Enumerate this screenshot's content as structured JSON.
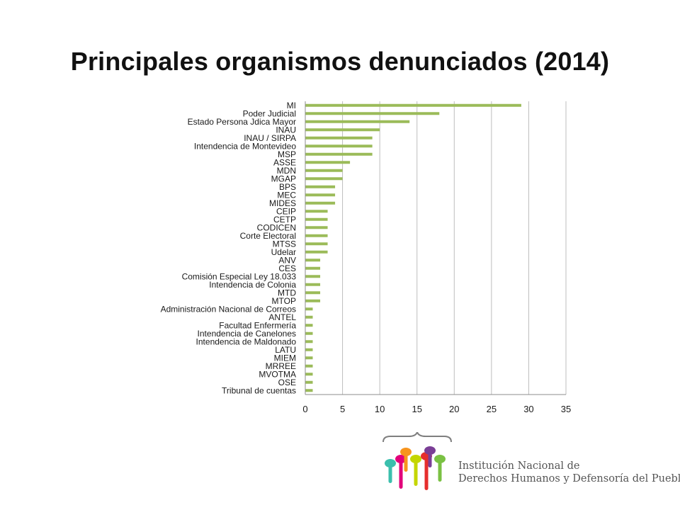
{
  "title": "Principales organismos denunciados (2014)",
  "colors": {
    "bar": "#9bbb59",
    "grid": "#bdbdbd",
    "axis": "#8c8c8c",
    "logo_brace": "#7f7f7f",
    "logo_figures": [
      "#3bbfad",
      "#e2007a",
      "#f7941d",
      "#c4d600",
      "#e62e2d",
      "#7a3e96",
      "#7ac143"
    ]
  },
  "logo": {
    "line1": "Institución Nacional de",
    "line2": "Derechos Humanos y Defensoría del Pueblo",
    "icon": "people-figures-logo-icon"
  },
  "chart_data": {
    "type": "bar",
    "orientation": "horizontal",
    "title": "Principales organismos denunciados (2014)",
    "xlabel": "",
    "ylabel": "",
    "xlim": [
      0,
      35
    ],
    "xticks": [
      0,
      5,
      10,
      15,
      20,
      25,
      30,
      35
    ],
    "grid": "vertical",
    "legend": "none",
    "categories": [
      "MI",
      "Poder Judicial",
      "Estado Persona Jdica Mayor",
      "INAU",
      "INAU / SIRPA",
      "Intendencia de Montevideo",
      "MSP",
      "ASSE",
      "MDN",
      "MGAP",
      "BPS",
      "MEC",
      "MIDES",
      "CEIP",
      "CETP",
      "CODICEN",
      "Corte Electoral",
      "MTSS",
      "Udelar",
      "ANV",
      "CES",
      "Comisión Especial Ley 18.033",
      "Intendencia de Colonia",
      "MTD",
      "MTOP",
      "Administración Nacional de Correos",
      "ANTEL",
      "Facultad Enfermería",
      "Intendencia de Canelones",
      "Intendencia de Maldonado",
      "LATU",
      "MIEM",
      "MRREE",
      "MVOTMA",
      "OSE",
      "Tribunal de cuentas"
    ],
    "values": [
      29,
      18,
      14,
      10,
      9,
      9,
      9,
      6,
      5,
      5,
      4,
      4,
      4,
      3,
      3,
      3,
      3,
      3,
      3,
      2,
      2,
      2,
      2,
      2,
      2,
      1,
      1,
      1,
      1,
      1,
      1,
      1,
      1,
      1,
      1,
      1
    ]
  }
}
